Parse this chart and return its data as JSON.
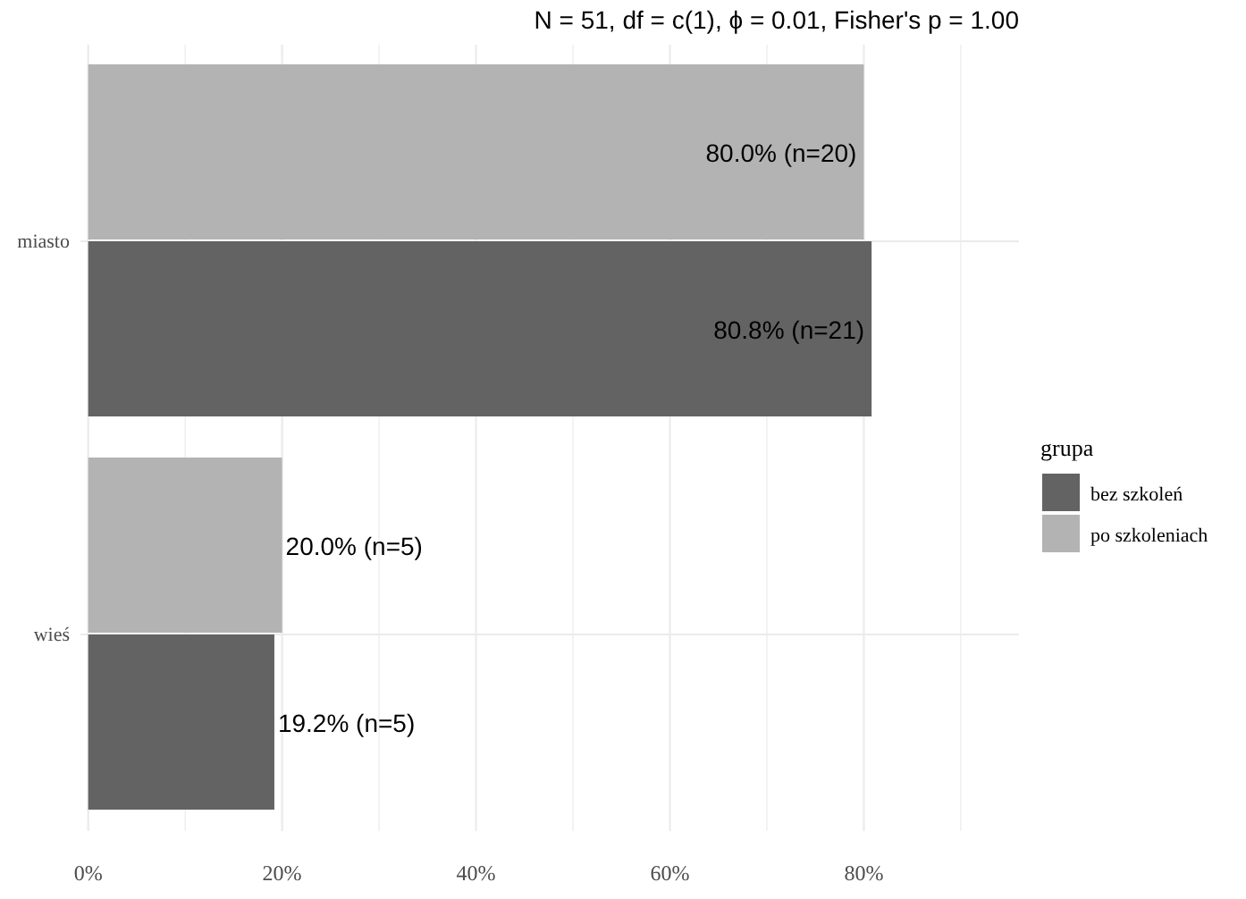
{
  "chart_data": {
    "type": "bar",
    "orientation": "horizontal",
    "subtitle": "N = 51,  df = c(1),  ϕ = 0.01,  Fisher's p = 1.00",
    "categories": [
      "miasto",
      "wieś"
    ],
    "series": [
      {
        "name": "bez szkoleń",
        "color": "#636363",
        "values": [
          80.8,
          19.2
        ],
        "value_labels": [
          "80.8% (n=21)",
          "19.2% (n=5)"
        ]
      },
      {
        "name": "po szkoleniach",
        "color": "#b3b3b3",
        "values": [
          80.0,
          20.0
        ],
        "value_labels": [
          "80.0% (n=20)",
          "20.0% (n=5)"
        ]
      }
    ],
    "xlim": [
      -0.8,
      96
    ],
    "xticks": [
      {
        "value": 0,
        "label": "0%"
      },
      {
        "value": 10,
        "label": null
      },
      {
        "value": 20,
        "label": "20%"
      },
      {
        "value": 30,
        "label": null
      },
      {
        "value": 40,
        "label": "40%"
      },
      {
        "value": 50,
        "label": null
      },
      {
        "value": 60,
        "label": "60%"
      },
      {
        "value": 70,
        "label": null
      },
      {
        "value": 80,
        "label": "80%"
      },
      {
        "value": 90,
        "label": null
      }
    ],
    "legend_title": "grupa",
    "legend": "right",
    "grid": true
  }
}
